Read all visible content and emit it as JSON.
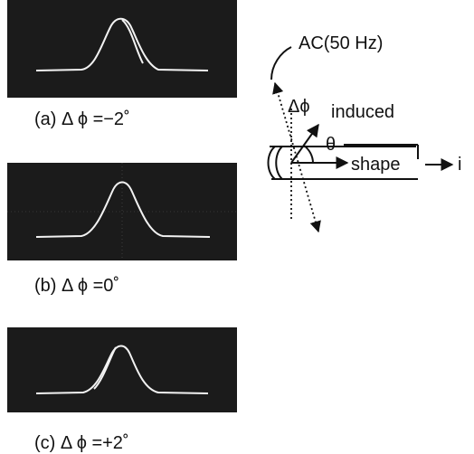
{
  "panels": [
    {
      "caption": "(a) Δ ϕ =−2˚"
    },
    {
      "caption": "(b) Δ ϕ =0˚"
    },
    {
      "caption": "(c) Δ ϕ =+2˚"
    }
  ],
  "diagram": {
    "source_label": "AC(50 Hz)",
    "phase_label": "Δϕ",
    "induced_label": "induced",
    "angle_label": "θ",
    "shape_label": "shape",
    "current_label": "i"
  }
}
